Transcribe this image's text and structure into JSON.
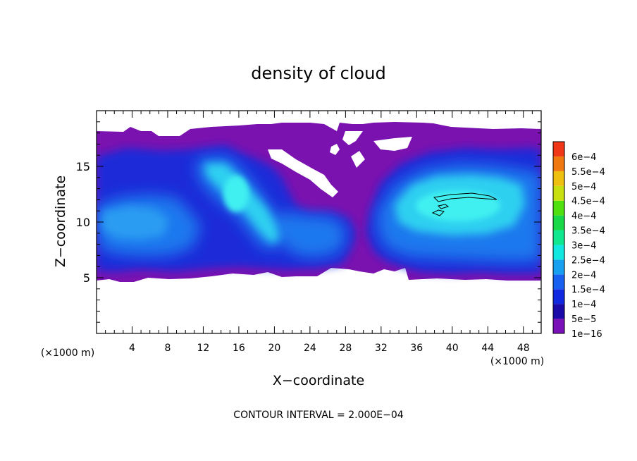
{
  "chart_data": {
    "type": "heatmap",
    "title": "density of cloud",
    "xlabel": "X−coordinate",
    "ylabel": "Z−coordinate",
    "x_units_left": "(×1000 m)",
    "x_units_right": "(×1000 m)",
    "footer": "CONTOUR INTERVAL = 2.000E−04",
    "xlim": [
      0,
      50
    ],
    "ylim": [
      0,
      20
    ],
    "x_ticks": [
      "4",
      "8",
      "12",
      "16",
      "20",
      "24",
      "28",
      "32",
      "36",
      "40",
      "44",
      "48"
    ],
    "y_ticks": [
      "5",
      "10",
      "15"
    ],
    "colorbar": {
      "labels": [
        "1e−16",
        "5e−5",
        "1e−4",
        "1.5e−4",
        "2e−4",
        "2.5e−4",
        "3e−4",
        "3.5e−4",
        "4e−4",
        "4.5e−4",
        "5e−4",
        "5.5e−4",
        "6e−4"
      ],
      "colors": [
        "#7a10b8",
        "#1a0aa8",
        "#1028e0",
        "#1860f0",
        "#18a0f0",
        "#10e8e0",
        "#10e890",
        "#18d848",
        "#50e010",
        "#c8e010",
        "#f0c010",
        "#f07810",
        "#f03818",
        "#f06060"
      ]
    },
    "palette": {
      "background": "#7a12b0",
      "low": "#1626c8",
      "mid": "#1e78ee",
      "high": "#2ed0f0",
      "peak": "#40f0f0"
    }
  }
}
